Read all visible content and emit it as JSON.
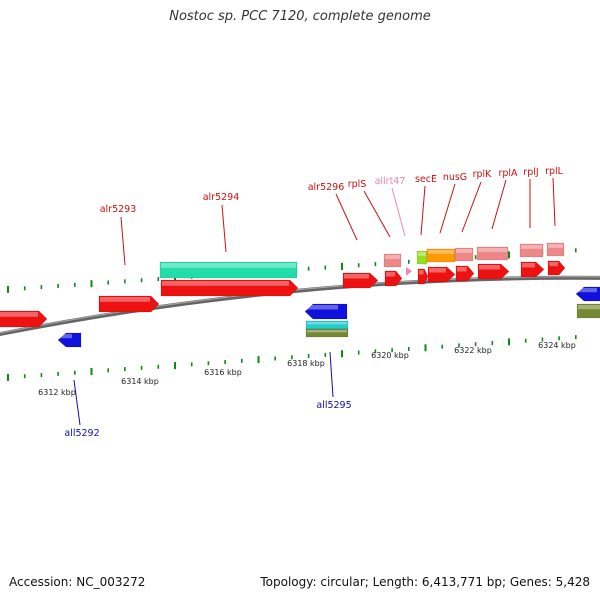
{
  "title": "Nostoc sp. PCC 7120, complete genome",
  "footer": {
    "accession": "Accession: NC_003272",
    "summary": "Topology: circular; Length: 6,413,771 bp; Genes: 5,428"
  },
  "colors": {
    "gene_red": "#ee1111",
    "gene_blue": "#1111dd",
    "gene_teal": "#22ddaa",
    "gene_pink": "#ee8888",
    "gene_orange": "#ff9900",
    "gene_green": "#99dd22",
    "gene_olive": "#778833",
    "tick_green": "#118811",
    "label_red": "#cc1111",
    "label_blue": "#1111aa",
    "label_pink": "#ee88aa"
  },
  "scale": {
    "labels": [
      "6312 kbp",
      "6314 kbp",
      "6316 kbp",
      "6318 kbp",
      "6320 kbp",
      "6322 kbp",
      "6324 kbp"
    ]
  },
  "genes": [
    {
      "name": "alr5293",
      "color": "label_red"
    },
    {
      "name": "alr5294",
      "color": "label_red"
    },
    {
      "name": "alr5296",
      "color": "label_red"
    },
    {
      "name": "rplS",
      "color": "label_red"
    },
    {
      "name": "allrt47",
      "color": "label_pink"
    },
    {
      "name": "secE",
      "color": "label_red"
    },
    {
      "name": "nusG",
      "color": "label_red"
    },
    {
      "name": "rplK",
      "color": "label_red"
    },
    {
      "name": "rplA",
      "color": "label_red"
    },
    {
      "name": "rplJ",
      "color": "label_red"
    },
    {
      "name": "rplL",
      "color": "label_red"
    },
    {
      "name": "all5292",
      "color": "label_blue"
    },
    {
      "name": "all5295",
      "color": "label_blue"
    }
  ]
}
